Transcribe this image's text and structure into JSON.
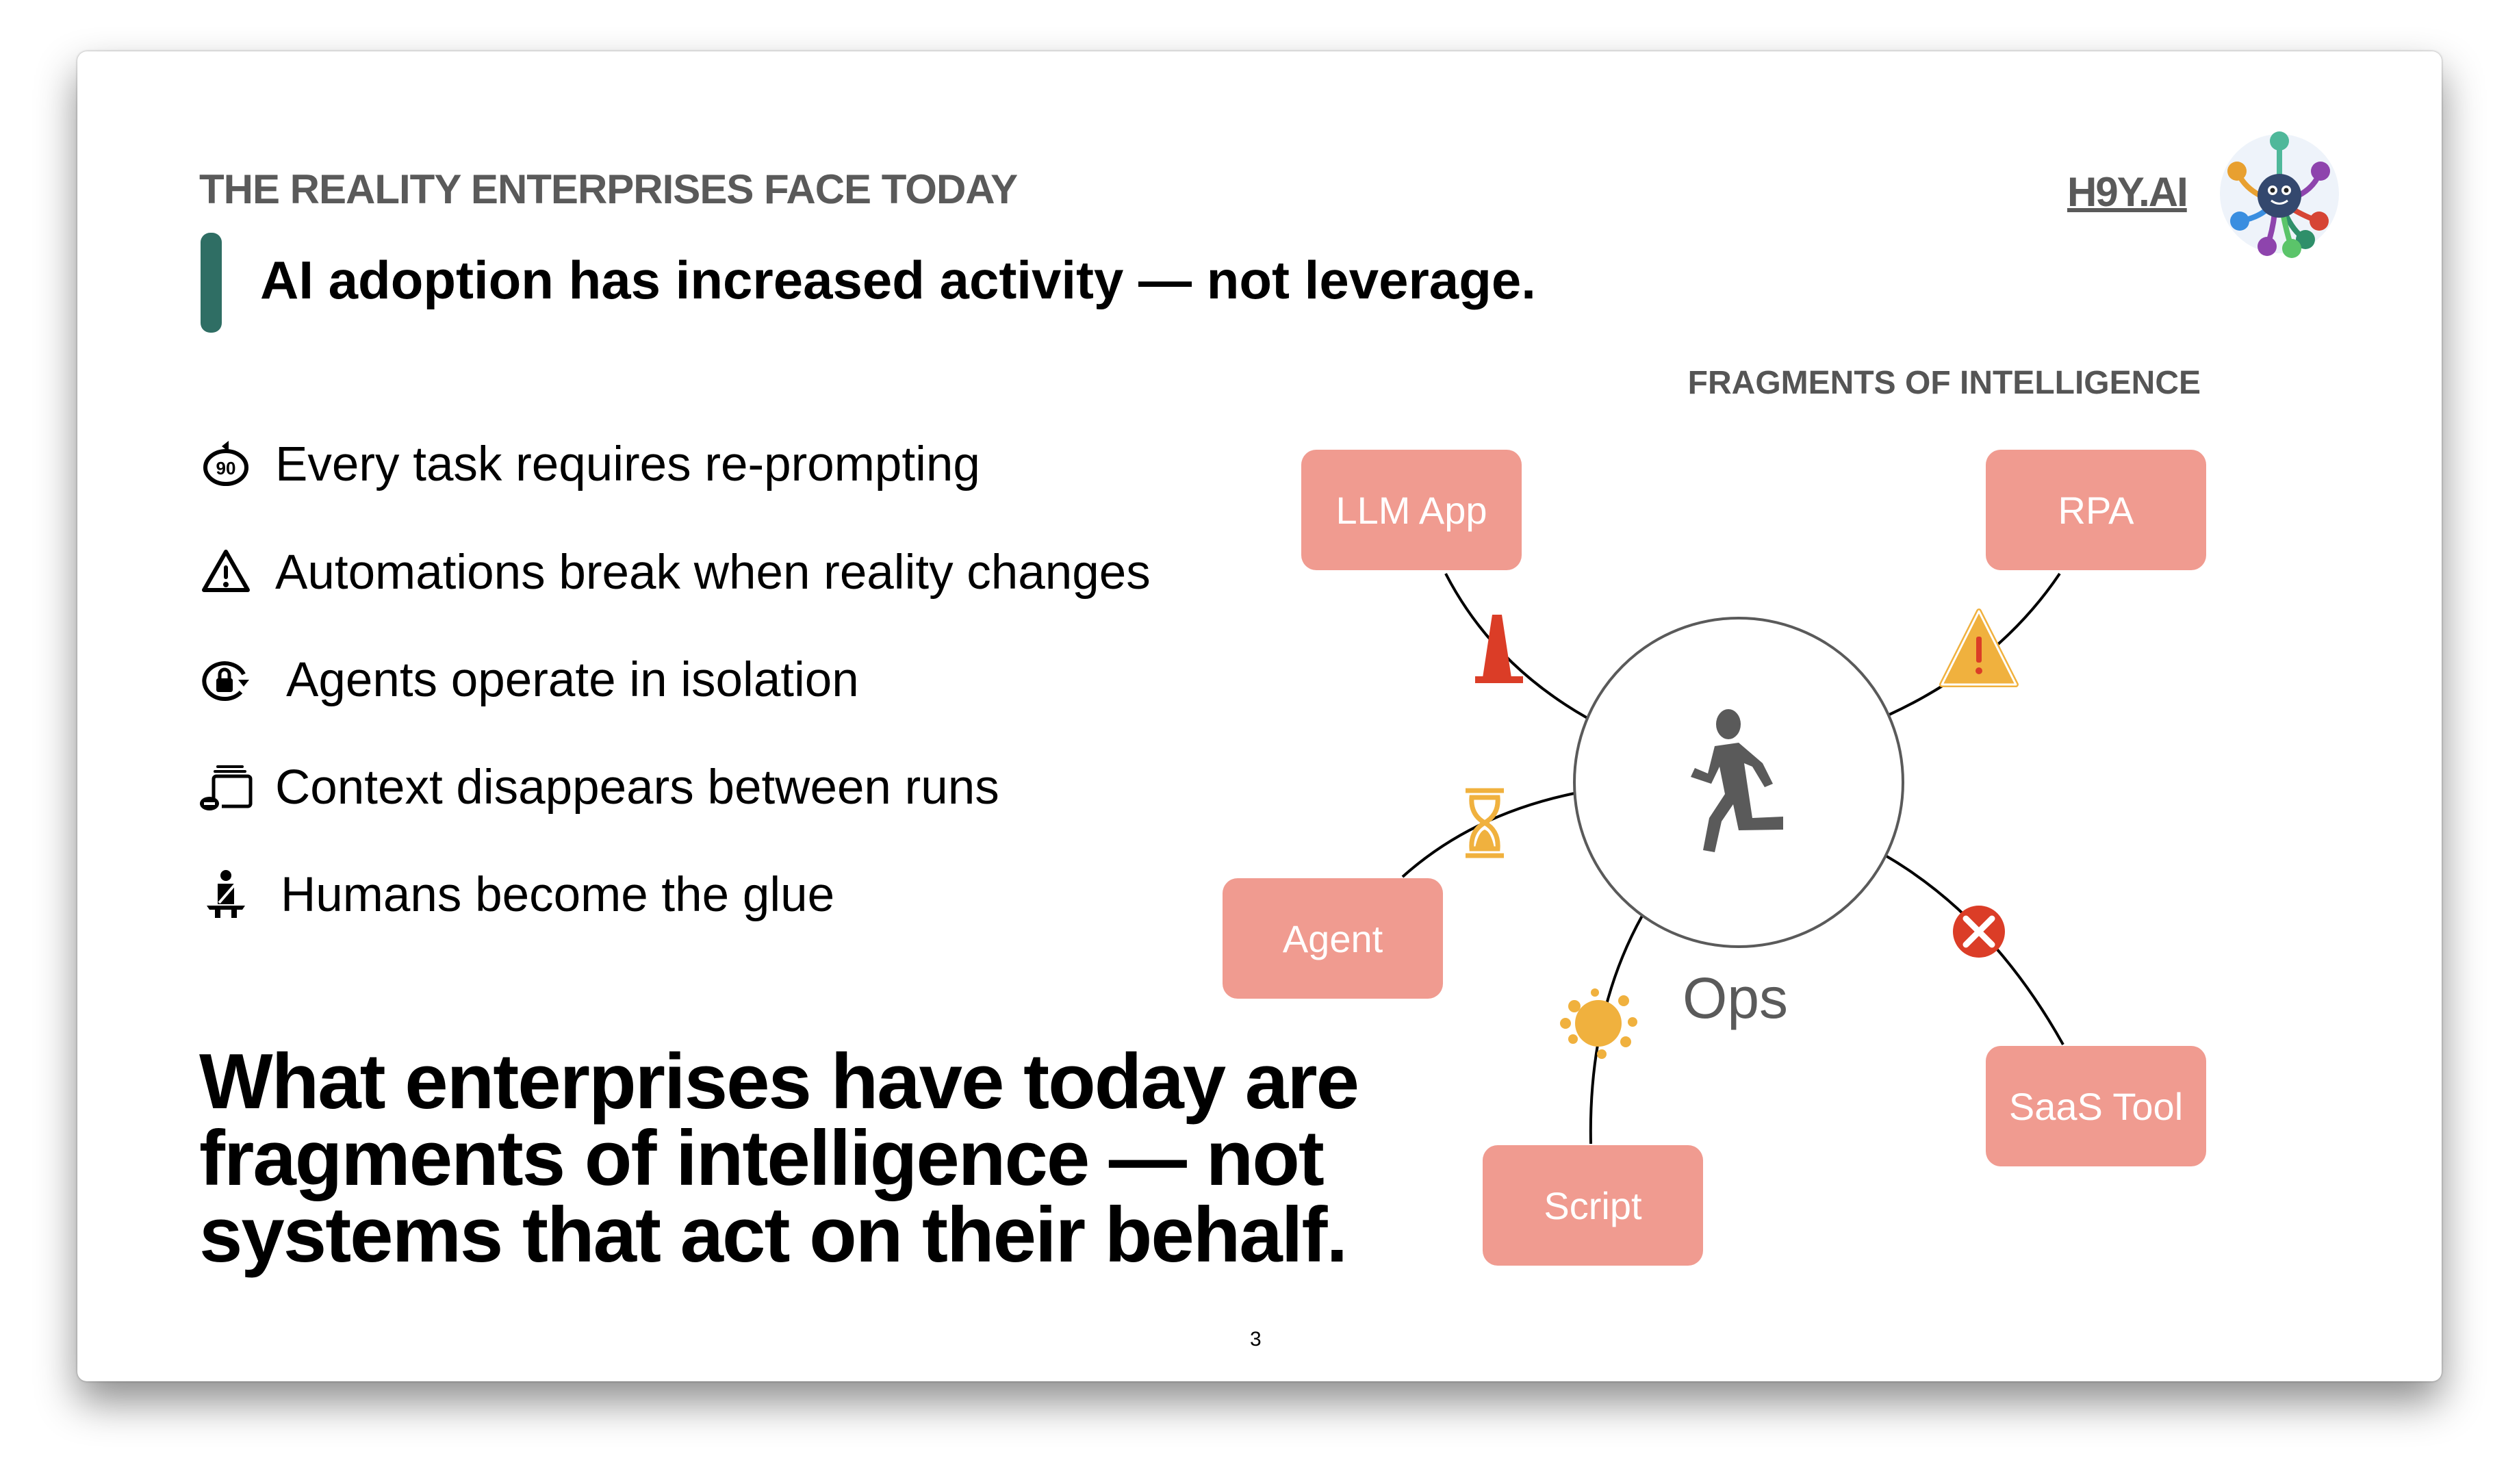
{
  "slide": {
    "kicker": "THE REALITY ENTERPRISES FACE TODAY",
    "subtitle": "AI adoption has increased activity — not leverage.",
    "brand": "H9Y.AI",
    "accent_color": "#2f6e64",
    "page_number": "3"
  },
  "bullets": [
    {
      "icon": "replay-90-icon",
      "text": "Every task requires re-prompting"
    },
    {
      "icon": "warning-triangle-icon",
      "text": "Automations break when reality changes"
    },
    {
      "icon": "lock-rotate-icon",
      "text": "Agents operate in isolation"
    },
    {
      "icon": "stacked-windows-minus-icon",
      "text": "Context disappears between runs"
    },
    {
      "icon": "seatbelt-person-icon",
      "text": "Humans become the glue"
    }
  ],
  "conclusion": [
    "What enterprises have today are",
    "fragments of intelligence — not",
    "systems that act on their behalf."
  ],
  "diagram": {
    "title": "FRAGMENTS OF INTELLIGENCE",
    "center_label": "Ops",
    "center_icon": "running-person-icon",
    "node_color": "#f09b90",
    "nodes": [
      {
        "label": "LLM App",
        "connector_icon": "traffic-cone-icon"
      },
      {
        "label": "RPA",
        "connector_icon": "warning-icon"
      },
      {
        "label": "Agent",
        "connector_icon": "hourglass-icon"
      },
      {
        "label": "Script",
        "connector_icon": "splat-icon"
      },
      {
        "label": "SaaS Tool",
        "connector_icon": "error-x-icon"
      }
    ]
  }
}
